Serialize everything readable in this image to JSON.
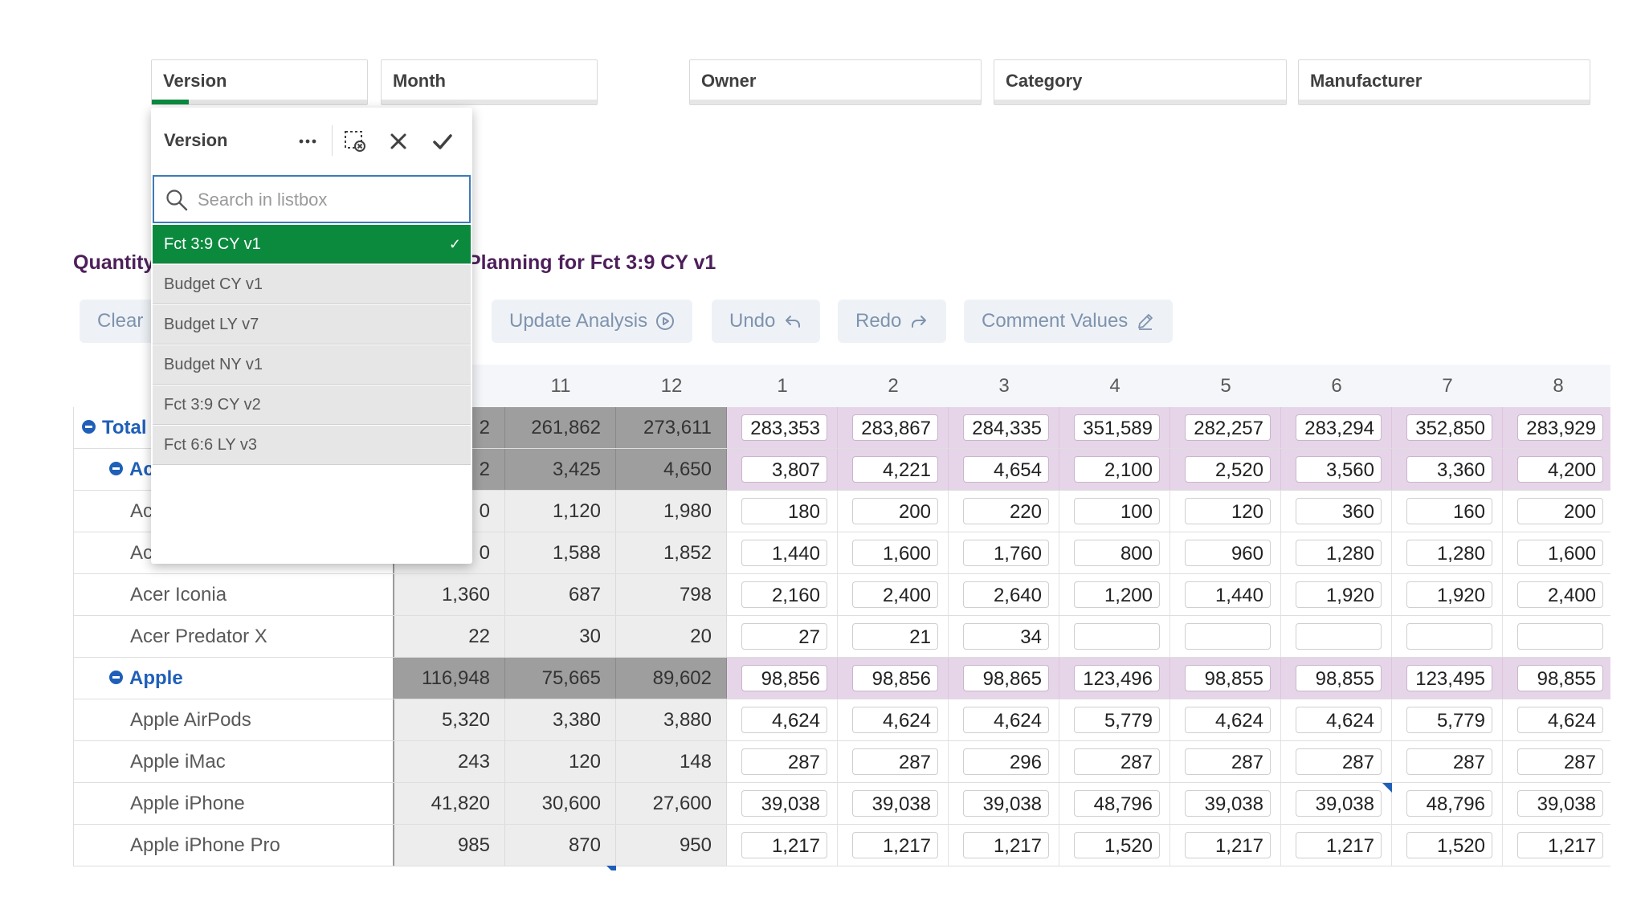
{
  "filters": [
    {
      "label": "Version"
    },
    {
      "label": "Month"
    },
    {
      "label": "Owner"
    },
    {
      "label": "Category"
    },
    {
      "label": "Manufacturer"
    }
  ],
  "listbox": {
    "title": "Version",
    "search_placeholder": "Search in listbox",
    "options": [
      {
        "label": "Fct 3:9 CY v1",
        "selected": true
      },
      {
        "label": "Budget CY v1",
        "selected": false
      },
      {
        "label": "Budget LY v7",
        "selected": false
      },
      {
        "label": "Budget NY v1",
        "selected": false
      },
      {
        "label": "Fct 3:9 CY v2",
        "selected": false
      },
      {
        "label": "Fct 6:6 LY v3",
        "selected": false
      }
    ],
    "icons": [
      "more-icon",
      "clear-selections-icon",
      "cancel-icon",
      "confirm-icon"
    ]
  },
  "sheet": {
    "title_left": "Quantity",
    "title_right": "Planning for Fct 3:9 CY v1"
  },
  "toolbar": {
    "clear_label": "Clear",
    "update_label": "Update Analysis",
    "undo_label": "Undo",
    "redo_label": "Redo",
    "comment_label": "Comment Values"
  },
  "table": {
    "columns": [
      "11",
      "12",
      "1",
      "2",
      "3",
      "4",
      "5",
      "6",
      "7",
      "8"
    ],
    "rows": [
      {
        "label": "Total",
        "level": 0,
        "bold": true,
        "first": "2",
        "values": [
          "261,862",
          "273,611",
          "283,353",
          "283,867",
          "284,335",
          "351,589",
          "282,257",
          "283,294",
          "352,850",
          "283,929"
        ]
      },
      {
        "label": "Ac",
        "level": 1,
        "bold": true,
        "first": "2",
        "values": [
          "3,425",
          "4,650",
          "3,807",
          "4,221",
          "4,654",
          "2,100",
          "2,520",
          "3,560",
          "3,360",
          "4,200"
        ]
      },
      {
        "label": "Ac",
        "level": 2,
        "bold": false,
        "first": "0",
        "values": [
          "1,120",
          "1,980",
          "180",
          "200",
          "220",
          "100",
          "120",
          "360",
          "160",
          "200"
        ]
      },
      {
        "label": "Ac",
        "level": 2,
        "bold": false,
        "first": "0",
        "values": [
          "1,588",
          "1,852",
          "1,440",
          "1,600",
          "1,760",
          "800",
          "960",
          "1,280",
          "1,280",
          "1,600"
        ]
      },
      {
        "label": "Acer Iconia",
        "level": 2,
        "bold": false,
        "first": "1,360",
        "values": [
          "687",
          "798",
          "2,160",
          "2,400",
          "2,640",
          "1,200",
          "1,440",
          "1,920",
          "1,920",
          "2,400"
        ]
      },
      {
        "label": "Acer Predator X",
        "level": 2,
        "bold": false,
        "first": "22",
        "values": [
          "30",
          "20",
          "27",
          "21",
          "34",
          "",
          "",
          "",
          "",
          ""
        ]
      },
      {
        "label": "Apple",
        "level": 1,
        "bold": true,
        "first": "116,948",
        "values": [
          "75,665",
          "89,602",
          "98,856",
          "98,856",
          "98,865",
          "123,496",
          "98,855",
          "98,855",
          "123,495",
          "98,855"
        ]
      },
      {
        "label": "Apple AirPods",
        "level": 2,
        "bold": false,
        "first": "5,320",
        "values": [
          "3,380",
          "3,880",
          "4,624",
          "4,624",
          "4,624",
          "5,779",
          "4,624",
          "4,624",
          "5,779",
          "4,624"
        ]
      },
      {
        "label": "Apple iMac",
        "level": 2,
        "bold": false,
        "first": "243",
        "values": [
          "120",
          "148",
          "287",
          "287",
          "296",
          "287",
          "287",
          "287",
          "287",
          "287"
        ]
      },
      {
        "label": "Apple iPhone",
        "level": 2,
        "bold": false,
        "first": "41,820",
        "values": [
          "30,600",
          "27,600",
          "39,038",
          "39,038",
          "39,038",
          "48,796",
          "39,038",
          "39,038",
          "48,796",
          "39,038"
        ]
      },
      {
        "label": "Apple iPhone Pro",
        "level": 2,
        "bold": false,
        "first": "985",
        "values": [
          "870",
          "950",
          "1,217",
          "1,217",
          "1,217",
          "1,520",
          "1,217",
          "1,217",
          "1,520",
          "1,217"
        ]
      }
    ]
  }
}
